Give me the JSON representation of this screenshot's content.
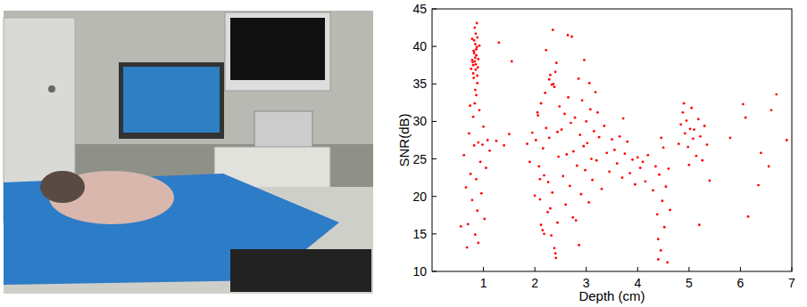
{
  "chart_data": {
    "type": "scatter",
    "xlabel": "Depth (cm)",
    "ylabel": "SNR(dB)",
    "color": "#ff0000",
    "marker": "circle",
    "xlim": [
      0,
      7
    ],
    "xticks": [
      1,
      2,
      3,
      4,
      5,
      6,
      7
    ],
    "ylim": [
      10,
      45
    ],
    "yticks": [
      10,
      15,
      20,
      25,
      30,
      35,
      40,
      45
    ],
    "grid": false,
    "x": [
      0.78,
      0.8,
      0.82,
      0.84,
      0.86,
      0.88,
      0.85,
      0.83,
      0.87,
      0.81,
      0.79,
      0.84,
      0.86,
      0.89,
      0.82,
      0.85,
      0.8,
      0.88,
      0.83,
      0.87,
      0.76,
      0.9,
      0.84,
      0.86,
      0.81,
      0.92,
      0.78,
      0.85,
      0.88,
      0.83,
      0.62,
      0.66,
      0.7,
      0.72,
      0.75,
      0.78,
      0.8,
      0.82,
      0.84,
      0.86,
      0.88,
      0.9,
      0.92,
      0.94,
      0.96,
      0.98,
      1.0,
      1.02,
      1.05,
      1.08,
      0.68,
      0.74,
      0.56,
      0.9,
      1.12,
      1.25,
      1.4,
      1.55,
      1.3,
      1.5,
      2.02,
      2.05,
      2.08,
      2.1,
      2.12,
      2.15,
      2.18,
      2.2,
      2.22,
      2.25,
      2.28,
      2.3,
      2.32,
      2.34,
      2.36,
      2.38,
      2.4,
      2.42,
      2.44,
      2.46,
      2.48,
      2.35,
      2.38,
      2.3,
      2.26,
      2.16,
      2.06,
      2.4,
      2.44,
      2.22,
      2.33,
      2.41,
      2.18,
      2.1,
      2.28,
      1.95,
      1.9,
      1.85,
      2.0,
      2.12,
      2.52,
      2.55,
      2.58,
      2.6,
      2.62,
      2.65,
      2.68,
      2.7,
      2.72,
      2.75,
      2.78,
      2.8,
      2.82,
      2.85,
      2.88,
      2.9,
      2.92,
      2.95,
      2.98,
      3.0,
      3.02,
      3.05,
      3.08,
      3.1,
      3.12,
      3.15,
      3.18,
      3.2,
      3.25,
      3.3,
      3.35,
      3.4,
      3.45,
      3.5,
      2.86,
      2.74,
      2.96,
      3.06,
      3.22,
      2.64,
      3.55,
      3.6,
      3.65,
      3.7,
      3.75,
      3.8,
      3.85,
      3.9,
      3.95,
      4.0,
      4.05,
      4.1,
      4.15,
      4.2,
      3.72,
      4.3,
      4.35,
      4.38,
      4.4,
      4.42,
      4.45,
      4.48,
      4.5,
      4.52,
      4.55,
      4.58,
      4.6,
      4.63,
      4.46,
      4.4,
      4.8,
      4.84,
      4.88,
      4.92,
      4.95,
      4.98,
      5.02,
      5.05,
      5.08,
      5.1,
      5.14,
      5.18,
      5.22,
      5.26,
      5.3,
      5.35,
      5.4,
      4.9,
      5.0,
      5.2,
      5.8,
      6.05,
      6.15,
      6.35,
      6.4,
      6.6,
      6.7,
      6.9,
      6.1,
      6.55
    ],
    "values": [
      38.2,
      37.5,
      39.1,
      40.3,
      38.8,
      41.2,
      36.9,
      42.5,
      43.1,
      35.8,
      37.9,
      38.5,
      39.6,
      37.2,
      40.8,
      41.7,
      36.4,
      35.1,
      38.0,
      39.9,
      37.0,
      38.3,
      34.2,
      33.5,
      39.4,
      40.1,
      41.0,
      37.6,
      36.1,
      32.4,
      25.5,
      21.2,
      16.3,
      28.4,
      23.0,
      19.5,
      30.6,
      26.8,
      14.9,
      22.3,
      18.1,
      27.2,
      31.5,
      24.6,
      20.4,
      26.9,
      29.3,
      17.0,
      23.8,
      27.5,
      13.2,
      32.1,
      16.0,
      13.8,
      26.1,
      27.4,
      26.8,
      38.0,
      40.5,
      28.3,
      27.5,
      31.2,
      24.0,
      19.6,
      16.2,
      15.5,
      22.8,
      33.8,
      29.1,
      17.9,
      35.6,
      36.2,
      14.8,
      20.5,
      35.0,
      13.1,
      12.4,
      37.8,
      28.6,
      25.3,
      32.0,
      42.2,
      34.6,
      18.4,
      21.9,
      26.4,
      30.8,
      36.6,
      16.5,
      39.5,
      34.9,
      11.8,
      15.0,
      22.3,
      27.8,
      28.5,
      24.6,
      27.0,
      20.1,
      32.4,
      28.9,
      22.7,
      31.0,
      18.9,
      25.6,
      33.2,
      21.4,
      29.8,
      41.3,
      26.0,
      30.5,
      16.8,
      24.1,
      35.7,
      28.2,
      20.3,
      32.8,
      26.7,
      23.5,
      30.0,
      27.1,
      19.2,
      31.6,
      25.0,
      22.2,
      28.7,
      33.9,
      24.8,
      27.9,
      21.0,
      29.4,
      25.8,
      23.3,
      27.6,
      13.5,
      17.2,
      38.2,
      35.1,
      31.2,
      41.5,
      26.2,
      24.4,
      28.0,
      22.5,
      25.7,
      27.3,
      23.1,
      24.9,
      21.6,
      25.2,
      23.8,
      24.6,
      22.0,
      25.5,
      30.4,
      20.8,
      24.0,
      17.6,
      14.3,
      22.9,
      12.8,
      19.4,
      26.5,
      15.9,
      21.3,
      11.2,
      23.7,
      18.2,
      27.8,
      11.6,
      27.0,
      29.6,
      31.2,
      28.4,
      30.1,
      26.6,
      29.0,
      31.8,
      27.7,
      28.9,
      25.4,
      30.3,
      28.0,
      24.8,
      29.4,
      26.9,
      22.1,
      32.4,
      24.2,
      16.2,
      27.8,
      32.3,
      17.3,
      21.5,
      25.8,
      31.5,
      33.6,
      27.5,
      30.5,
      24.0
    ]
  }
}
